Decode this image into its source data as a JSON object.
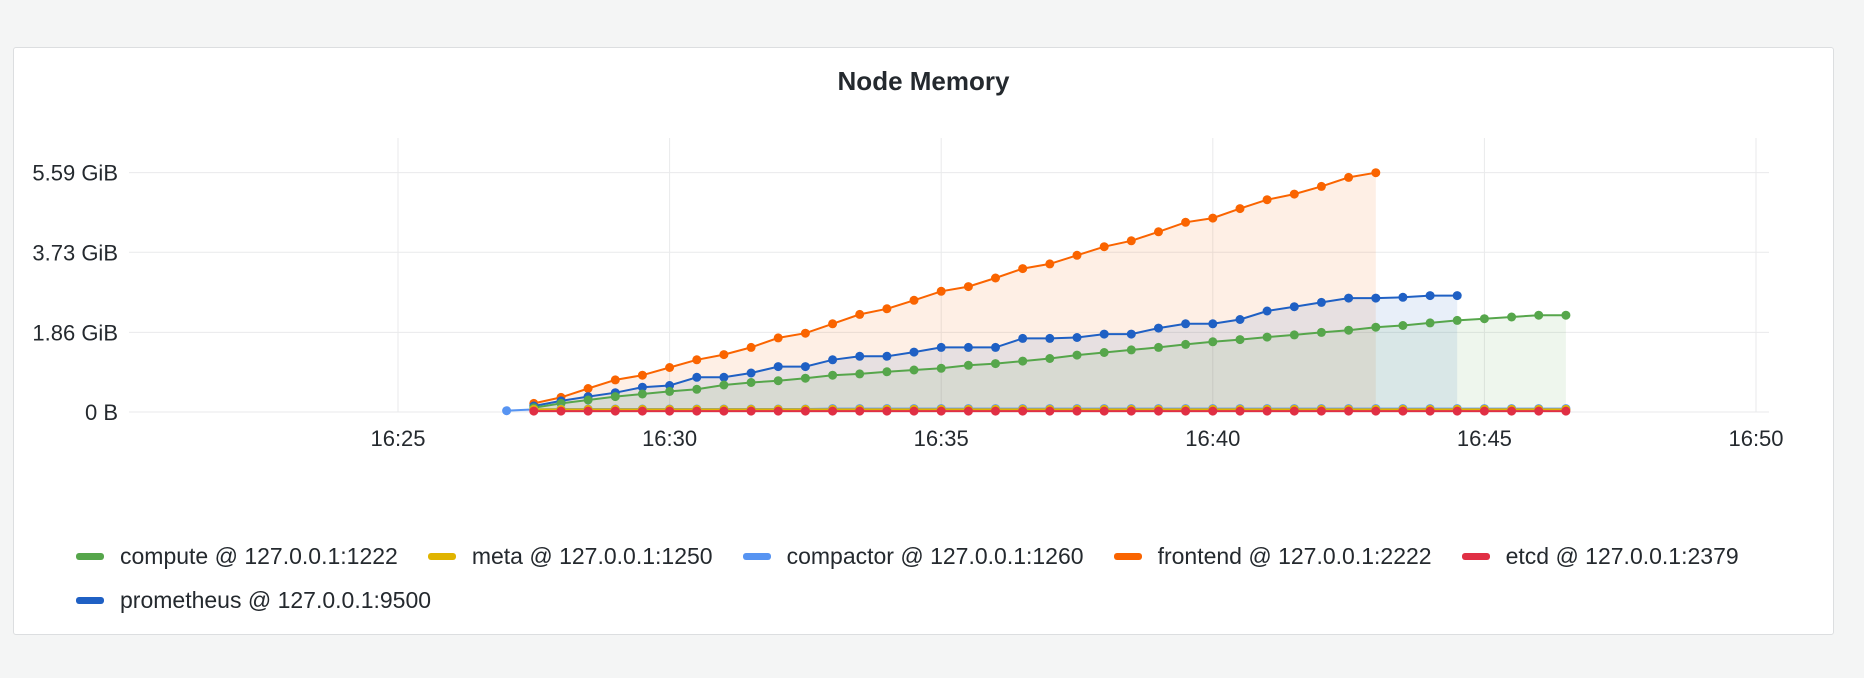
{
  "panel": {
    "title": "Node Memory"
  },
  "chart_data": {
    "type": "area",
    "title": "Node Memory",
    "x_start": "16:20:30",
    "step_seconds": 30,
    "x_ticks": [
      "16:25",
      "16:30",
      "16:35",
      "16:40",
      "16:45",
      "16:50"
    ],
    "y_ticks": [
      "0 B",
      "1.86 GiB",
      "3.73 GiB",
      "5.59 GiB"
    ],
    "y_tick_values": [
      0,
      1.86,
      3.73,
      5.59
    ],
    "ylim": [
      0,
      6.4
    ],
    "unit": "GiB",
    "grid": true,
    "legend_position": "bottom",
    "series": [
      {
        "name": "compute @ 127.0.0.1:1222",
        "color": "#56a64b",
        "start_index": 14,
        "values": [
          0.1,
          0.2,
          0.28,
          0.36,
          0.42,
          0.48,
          0.53,
          0.63,
          0.69,
          0.73,
          0.79,
          0.86,
          0.89,
          0.94,
          0.98,
          1.02,
          1.09,
          1.13,
          1.19,
          1.25,
          1.33,
          1.39,
          1.45,
          1.51,
          1.58,
          1.64,
          1.69,
          1.75,
          1.8,
          1.86,
          1.91,
          1.98,
          2.02,
          2.08,
          2.14,
          2.18,
          2.22,
          2.26,
          2.26
        ]
      },
      {
        "name": "meta @ 127.0.0.1:1250",
        "color": "#e0b400",
        "start_index": 14,
        "values": [
          0.06,
          0.06,
          0.06,
          0.06,
          0.06,
          0.06,
          0.06,
          0.06,
          0.06,
          0.06,
          0.06,
          0.06,
          0.06,
          0.06,
          0.06,
          0.06,
          0.06,
          0.06,
          0.06,
          0.06,
          0.06,
          0.06,
          0.06,
          0.06,
          0.06,
          0.06,
          0.06,
          0.06,
          0.06,
          0.06,
          0.06,
          0.06,
          0.06,
          0.06,
          0.06,
          0.06,
          0.06,
          0.06,
          0.06
        ]
      },
      {
        "name": "compactor @ 127.0.0.1:1260",
        "color": "#5794f2",
        "start_index": 13,
        "values": [
          0.03,
          0.06,
          0.07,
          0.07,
          0.07,
          0.07,
          0.07,
          0.07,
          0.07,
          0.07,
          0.07,
          0.07,
          0.08,
          0.08,
          0.08,
          0.08,
          0.08,
          0.08,
          0.08,
          0.08,
          0.08,
          0.08,
          0.08,
          0.08,
          0.08,
          0.08,
          0.08,
          0.08,
          0.08,
          0.08,
          0.08,
          0.08,
          0.08,
          0.08,
          0.08,
          0.08,
          0.08,
          0.08,
          0.08,
          0.08
        ]
      },
      {
        "name": "frontend @ 127.0.0.1:2222",
        "color": "#fa6400",
        "start_index": 14,
        "values": [
          0.2,
          0.34,
          0.55,
          0.75,
          0.86,
          1.04,
          1.22,
          1.34,
          1.51,
          1.73,
          1.84,
          2.06,
          2.28,
          2.41,
          2.61,
          2.82,
          2.93,
          3.13,
          3.35,
          3.46,
          3.66,
          3.86,
          4.0,
          4.21,
          4.43,
          4.53,
          4.75,
          4.96,
          5.09,
          5.27,
          5.48,
          5.59
        ]
      },
      {
        "name": "etcd @ 127.0.0.1:2379",
        "color": "#e02f44",
        "start_index": 14,
        "values": [
          0.02,
          0.02,
          0.02,
          0.02,
          0.02,
          0.02,
          0.02,
          0.02,
          0.02,
          0.02,
          0.02,
          0.02,
          0.02,
          0.02,
          0.02,
          0.02,
          0.02,
          0.02,
          0.02,
          0.02,
          0.02,
          0.02,
          0.02,
          0.02,
          0.02,
          0.02,
          0.02,
          0.02,
          0.02,
          0.02,
          0.02,
          0.02,
          0.02,
          0.02,
          0.02,
          0.02,
          0.02,
          0.02,
          0.02
        ]
      },
      {
        "name": "prometheus @ 127.0.0.1:9500",
        "color": "#1f60c4",
        "start_index": 14,
        "values": [
          0.14,
          0.26,
          0.36,
          0.45,
          0.58,
          0.62,
          0.81,
          0.81,
          0.91,
          1.06,
          1.06,
          1.22,
          1.3,
          1.3,
          1.4,
          1.51,
          1.51,
          1.51,
          1.72,
          1.72,
          1.74,
          1.82,
          1.82,
          1.96,
          2.06,
          2.06,
          2.16,
          2.36,
          2.46,
          2.56,
          2.66,
          2.66,
          2.68,
          2.72,
          2.72
        ]
      }
    ]
  }
}
